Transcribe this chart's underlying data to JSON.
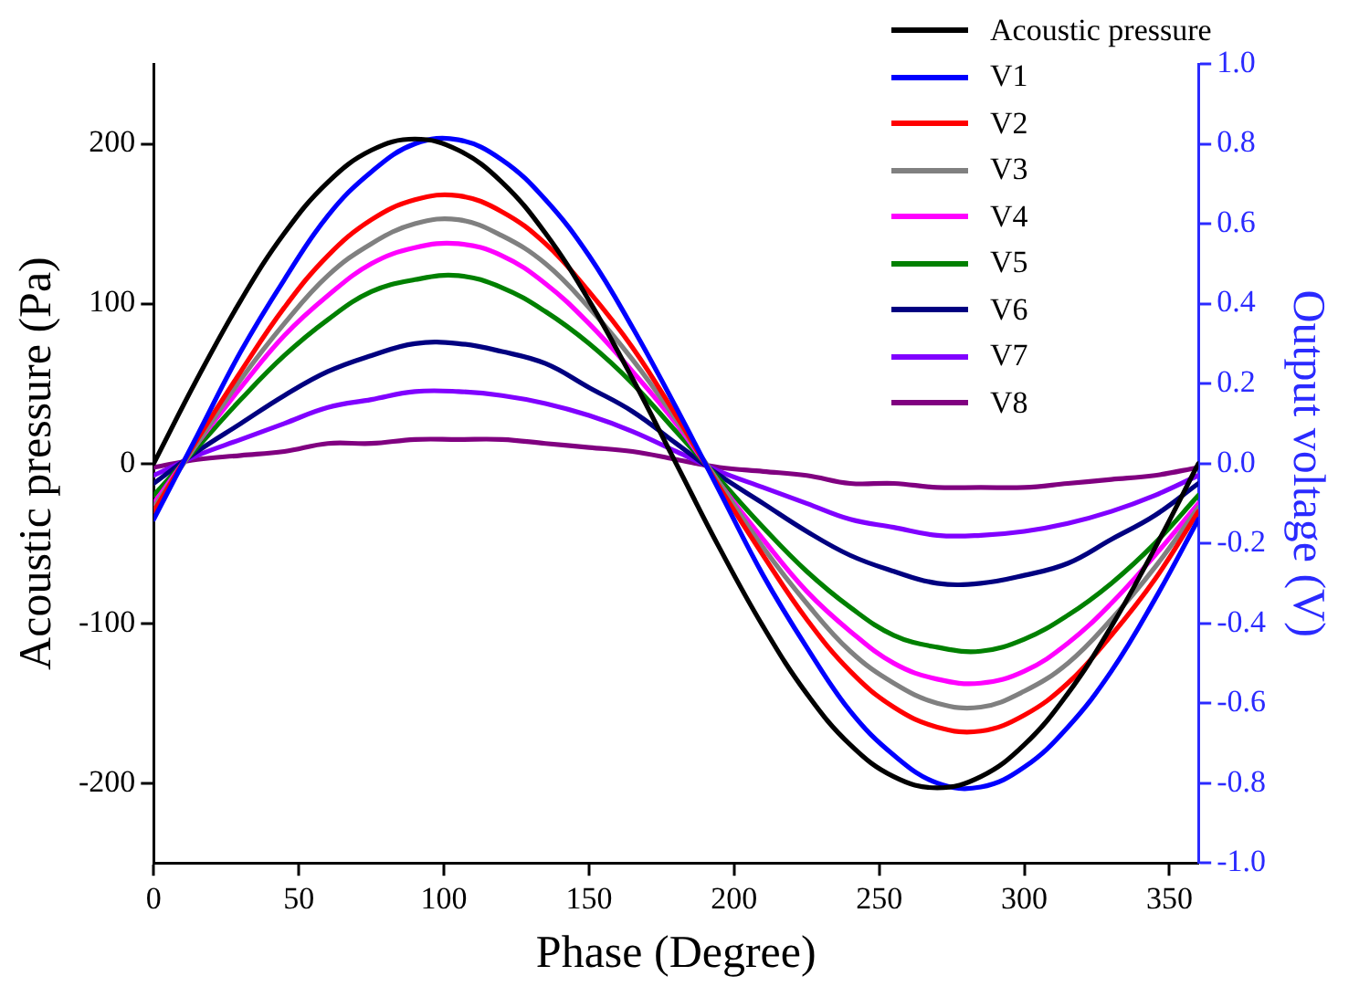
{
  "chart_data": {
    "type": "line",
    "xlabel": "Phase (Degree)",
    "ylabel": "Acoustic pressure (Pa)",
    "y2label": "Output voltage (V)",
    "x": [
      0,
      15,
      30,
      45,
      60,
      75,
      90,
      105,
      120,
      135,
      150,
      165,
      180,
      195,
      210,
      225,
      240,
      255,
      270,
      285,
      300,
      315,
      330,
      345,
      360
    ],
    "series": [
      {
        "name": "Acoustic pressure",
        "color": "#000000",
        "values": [
          0,
          53,
          102,
          144,
          176,
          196,
          203,
          196,
          176,
          144,
          102,
          53,
          0,
          -53,
          -102,
          -144,
          -176,
          -196,
          -203,
          -196,
          -176,
          -144,
          -102,
          -53,
          0
        ]
      },
      {
        "name": "V1",
        "color": "#0000ff",
        "axis": "y2",
        "values": [
          -0.14,
          0.07,
          0.28,
          0.46,
          0.62,
          0.73,
          0.8,
          0.81,
          0.76,
          0.66,
          0.52,
          0.34,
          0.14,
          -0.07,
          -0.28,
          -0.46,
          -0.62,
          -0.73,
          -0.8,
          -0.81,
          -0.76,
          -0.66,
          -0.52,
          -0.34,
          -0.14
        ]
      },
      {
        "name": "V2",
        "color": "#ff0000",
        "axis": "y2",
        "values": [
          -0.12,
          0.06,
          0.23,
          0.39,
          0.52,
          0.61,
          0.66,
          0.67,
          0.63,
          0.55,
          0.43,
          0.29,
          0.12,
          -0.06,
          -0.23,
          -0.39,
          -0.52,
          -0.61,
          -0.66,
          -0.67,
          -0.63,
          -0.55,
          -0.43,
          -0.29,
          -0.12
        ]
      },
      {
        "name": "V3",
        "color": "#808080",
        "axis": "y2",
        "values": [
          -0.11,
          0.05,
          0.21,
          0.35,
          0.47,
          0.55,
          0.6,
          0.61,
          0.57,
          0.5,
          0.39,
          0.26,
          0.11,
          -0.05,
          -0.21,
          -0.35,
          -0.47,
          -0.55,
          -0.6,
          -0.61,
          -0.57,
          -0.5,
          -0.39,
          -0.26,
          -0.11
        ]
      },
      {
        "name": "V4",
        "color": "#ff00ff",
        "axis": "y2",
        "values": [
          -0.1,
          0.05,
          0.19,
          0.32,
          0.42,
          0.5,
          0.54,
          0.55,
          0.52,
          0.45,
          0.35,
          0.23,
          0.1,
          -0.05,
          -0.19,
          -0.32,
          -0.42,
          -0.5,
          -0.54,
          -0.55,
          -0.52,
          -0.45,
          -0.35,
          -0.23,
          -0.1
        ]
      },
      {
        "name": "V5",
        "color": "#008000",
        "axis": "y2",
        "values": [
          -0.08,
          0.04,
          0.16,
          0.27,
          0.36,
          0.43,
          0.46,
          0.47,
          0.44,
          0.38,
          0.3,
          0.2,
          0.08,
          -0.04,
          -0.16,
          -0.27,
          -0.36,
          -0.43,
          -0.46,
          -0.47,
          -0.44,
          -0.38,
          -0.3,
          -0.2,
          -0.08
        ]
      },
      {
        "name": "V6",
        "color": "#000080",
        "axis": "y2",
        "values": [
          -0.05,
          0.03,
          0.1,
          0.17,
          0.23,
          0.27,
          0.3,
          0.3,
          0.28,
          0.25,
          0.19,
          0.13,
          0.05,
          -0.03,
          -0.1,
          -0.17,
          -0.23,
          -0.27,
          -0.3,
          -0.3,
          -0.28,
          -0.25,
          -0.19,
          -0.13,
          -0.05
        ]
      },
      {
        "name": "V7",
        "color": "#8000ff",
        "axis": "y2",
        "values": [
          -0.03,
          0.02,
          0.06,
          0.1,
          0.14,
          0.16,
          0.18,
          0.18,
          0.17,
          0.15,
          0.12,
          0.08,
          0.03,
          -0.02,
          -0.06,
          -0.1,
          -0.14,
          -0.16,
          -0.18,
          -0.18,
          -0.17,
          -0.15,
          -0.12,
          -0.08,
          -0.03
        ]
      },
      {
        "name": "V8",
        "color": "#800080",
        "axis": "y2",
        "values": [
          -0.01,
          0.01,
          0.02,
          0.03,
          0.05,
          0.05,
          0.06,
          0.06,
          0.06,
          0.05,
          0.04,
          0.03,
          0.01,
          -0.01,
          -0.02,
          -0.03,
          -0.05,
          -0.05,
          -0.06,
          -0.06,
          -0.06,
          -0.05,
          -0.04,
          -0.03,
          -0.01
        ]
      }
    ],
    "xlim": [
      0,
      360
    ],
    "xticks": [
      0,
      50,
      100,
      150,
      200,
      250,
      300,
      350
    ],
    "ylim": [
      -250,
      250
    ],
    "yticks": [
      -200,
      -100,
      0,
      100,
      200
    ],
    "y2lim": [
      -1.0,
      1.0
    ],
    "y2ticks": [
      {
        "value": -1,
        "label": "-1.0"
      },
      {
        "value": -0.8,
        "label": "-0.8"
      },
      {
        "value": -0.6,
        "label": "-0.6"
      },
      {
        "value": -0.4,
        "label": "-0.4"
      },
      {
        "value": -0.2,
        "label": "-0.2"
      },
      {
        "value": 0,
        "label": "0.0"
      },
      {
        "value": 0.2,
        "label": "0.2"
      },
      {
        "value": 0.4,
        "label": "0.4"
      },
      {
        "value": 0.6,
        "label": "0.6"
      },
      {
        "value": 0.8,
        "label": "0.8"
      },
      {
        "value": 1,
        "label": "1.0"
      }
    ],
    "grid": false,
    "legend": "top right",
    "marker": "none",
    "line_style": "solid"
  }
}
